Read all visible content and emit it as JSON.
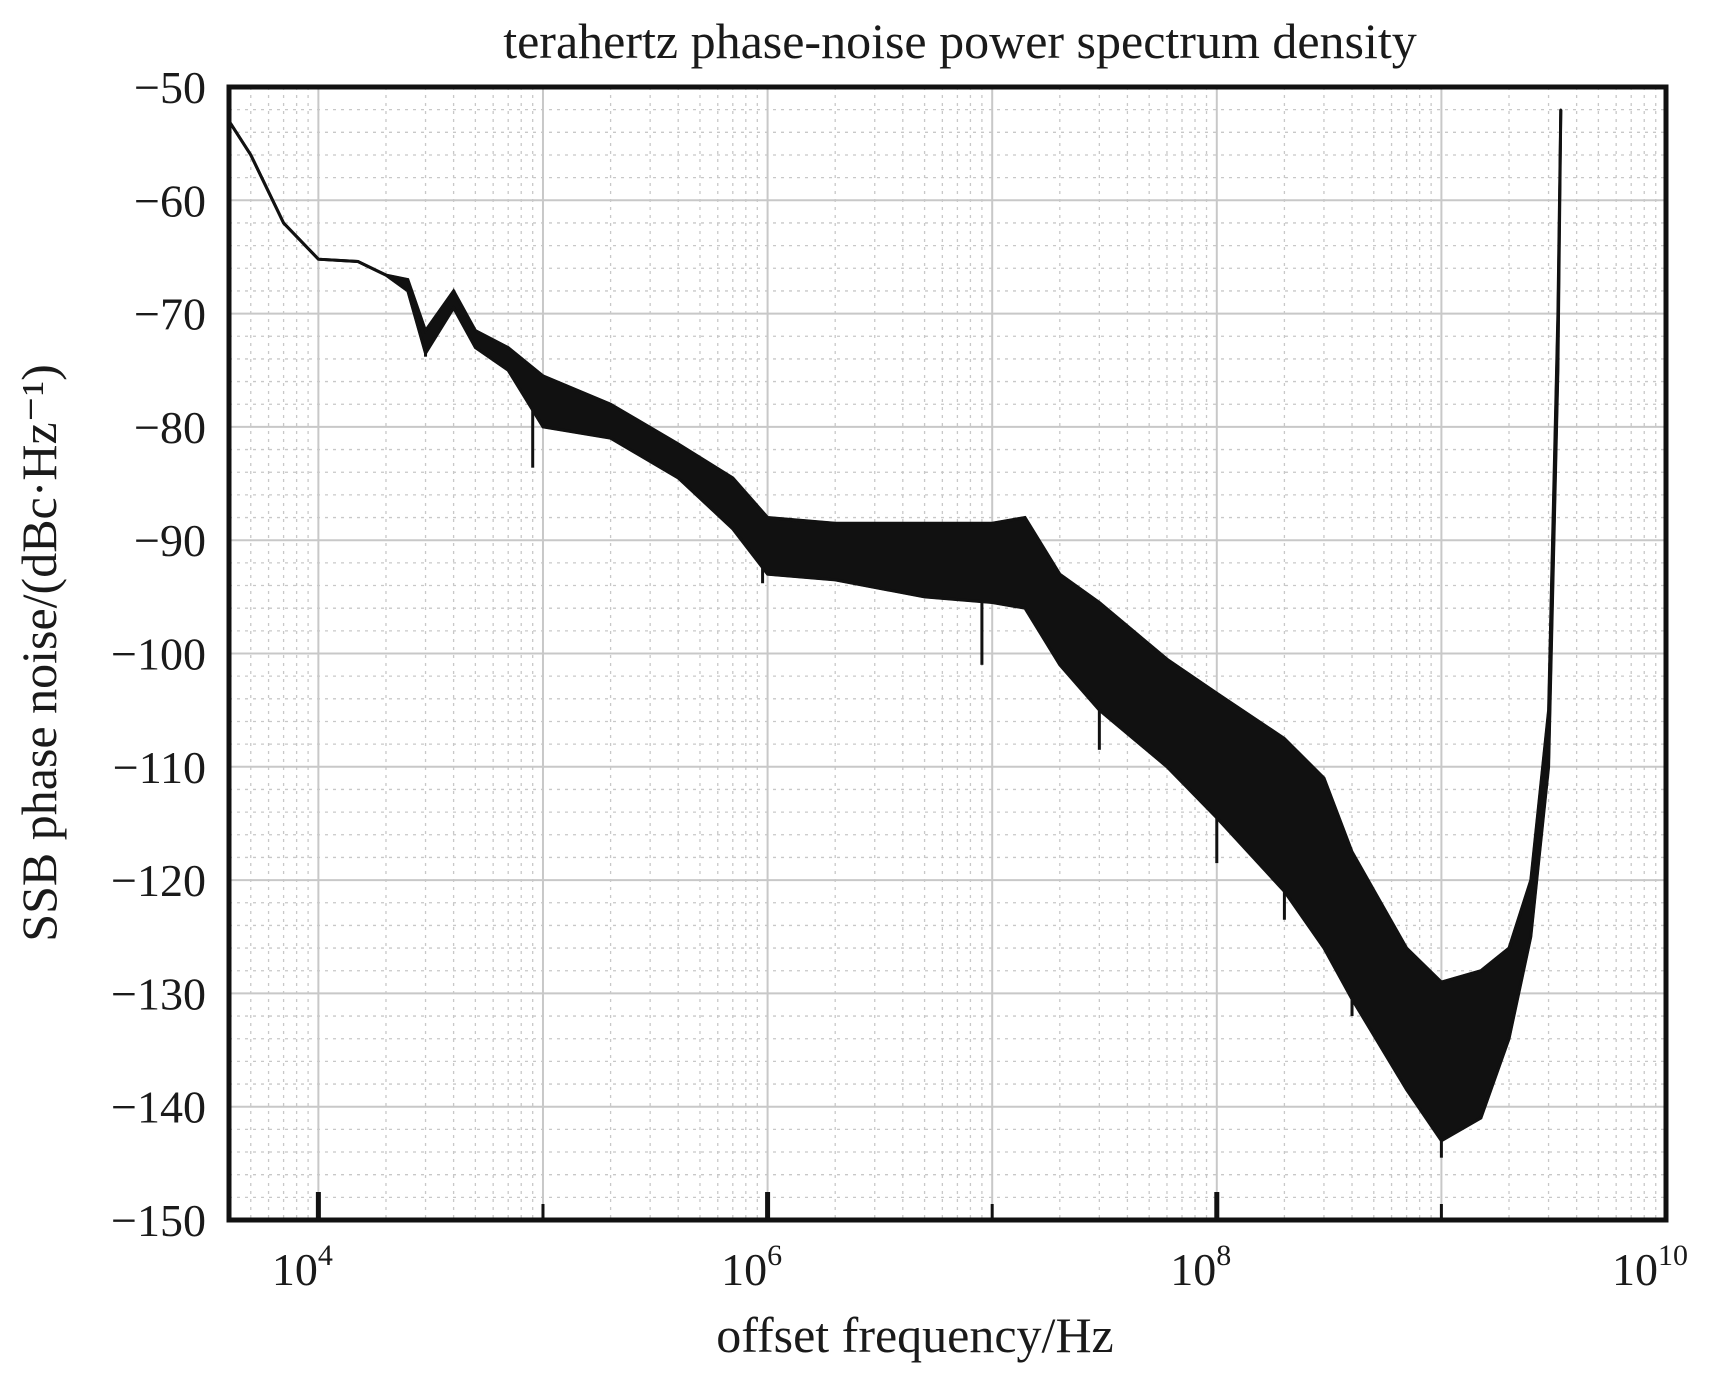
{
  "chart_data": {
    "type": "line",
    "title": "terahertz phase-noise power spectrum density",
    "xlabel": "offset frequency/Hz",
    "ylabel": "SSB phase noise/(dBc·Hz⁻¹)",
    "x_scale": "log",
    "xlim": [
      4000,
      10000000000
    ],
    "ylim": [
      -150,
      -50
    ],
    "grid": true,
    "x_ticks": [
      {
        "base": "10",
        "exp": "4",
        "value": 10000
      },
      {
        "base": "10",
        "exp": "6",
        "value": 1000000
      },
      {
        "base": "10",
        "exp": "8",
        "value": 100000000
      },
      {
        "base": "10",
        "exp": "10",
        "value": 10000000000
      }
    ],
    "y_ticks": [
      {
        "label": "−50",
        "value": -50
      },
      {
        "label": "−60",
        "value": -60
      },
      {
        "label": "−70",
        "value": -70
      },
      {
        "label": "−80",
        "value": -80
      },
      {
        "label": "−90",
        "value": -90
      },
      {
        "label": "−100",
        "value": -100
      },
      {
        "label": "−110",
        "value": -110
      },
      {
        "label": "−120",
        "value": -120
      },
      {
        "label": "−130",
        "value": -130
      },
      {
        "label": "−140",
        "value": -140
      },
      {
        "label": "−150",
        "value": -150
      }
    ],
    "series": [
      {
        "color": "#111111",
        "points_upper": [
          [
            4000,
            -53
          ],
          [
            5000,
            -56
          ],
          [
            7000,
            -62
          ],
          [
            10000,
            -65.2
          ],
          [
            15000,
            -65.4
          ],
          [
            20000,
            -66.6
          ],
          [
            25000,
            -67.0
          ],
          [
            30000,
            -71.5
          ],
          [
            40000,
            -68.0
          ],
          [
            50000,
            -71.5
          ],
          [
            70000,
            -73.0
          ],
          [
            100000,
            -75.5
          ],
          [
            200000,
            -78.0
          ],
          [
            400000,
            -81.5
          ],
          [
            700000,
            -84.5
          ],
          [
            1000000,
            -88.0
          ],
          [
            2000000,
            -88.5
          ],
          [
            5000000,
            -88.5
          ],
          [
            10000000,
            -88.5
          ],
          [
            14000000,
            -88.0
          ],
          [
            20000000,
            -93.0
          ],
          [
            30000000,
            -95.5
          ],
          [
            60000000,
            -100.5
          ],
          [
            100000000,
            -103.5
          ],
          [
            200000000,
            -107.5
          ],
          [
            300000000,
            -111.0
          ],
          [
            400000000,
            -117.5
          ],
          [
            700000000,
            -126.0
          ],
          [
            1000000000,
            -129.0
          ],
          [
            1500000000,
            -128.0
          ],
          [
            2000000000,
            -126.0
          ],
          [
            2500000000,
            -120.0
          ],
          [
            3000000000,
            -105.0
          ],
          [
            3300000000,
            -70.0
          ],
          [
            3400000000,
            -52.0
          ]
        ],
        "points_lower": [
          [
            4000,
            -53
          ],
          [
            5000,
            -56
          ],
          [
            7000,
            -62
          ],
          [
            10000,
            -65.2
          ],
          [
            15000,
            -65.4
          ],
          [
            20000,
            -66.6
          ],
          [
            25000,
            -68.0
          ],
          [
            30000,
            -73.5
          ],
          [
            40000,
            -69.5
          ],
          [
            50000,
            -73.0
          ],
          [
            70000,
            -75.0
          ],
          [
            100000,
            -80.0
          ],
          [
            200000,
            -81.0
          ],
          [
            400000,
            -84.5
          ],
          [
            700000,
            -89.0
          ],
          [
            1000000,
            -93.0
          ],
          [
            2000000,
            -93.5
          ],
          [
            5000000,
            -95.0
          ],
          [
            10000000,
            -95.5
          ],
          [
            14000000,
            -96.0
          ],
          [
            20000000,
            -101.0
          ],
          [
            30000000,
            -105.0
          ],
          [
            60000000,
            -110.0
          ],
          [
            100000000,
            -114.5
          ],
          [
            200000000,
            -121.0
          ],
          [
            300000000,
            -126.0
          ],
          [
            400000000,
            -130.5
          ],
          [
            700000000,
            -138.5
          ],
          [
            1000000000,
            -143.0
          ],
          [
            1500000000,
            -141.0
          ],
          [
            2000000000,
            -134.0
          ],
          [
            2500000000,
            -125.0
          ],
          [
            3000000000,
            -110.0
          ],
          [
            3300000000,
            -75.0
          ],
          [
            3400000000,
            -52.0
          ]
        ],
        "dips": [
          [
            30000,
            -73.8
          ],
          [
            90000,
            -83.6
          ],
          [
            950000,
            -93.8
          ],
          [
            9000000,
            -101.0
          ],
          [
            30000000,
            -108.5
          ],
          [
            100000000,
            -118.5
          ],
          [
            200000000,
            -123.5
          ],
          [
            400000000,
            -132.0
          ],
          [
            1000000000,
            -144.5
          ]
        ]
      }
    ]
  }
}
